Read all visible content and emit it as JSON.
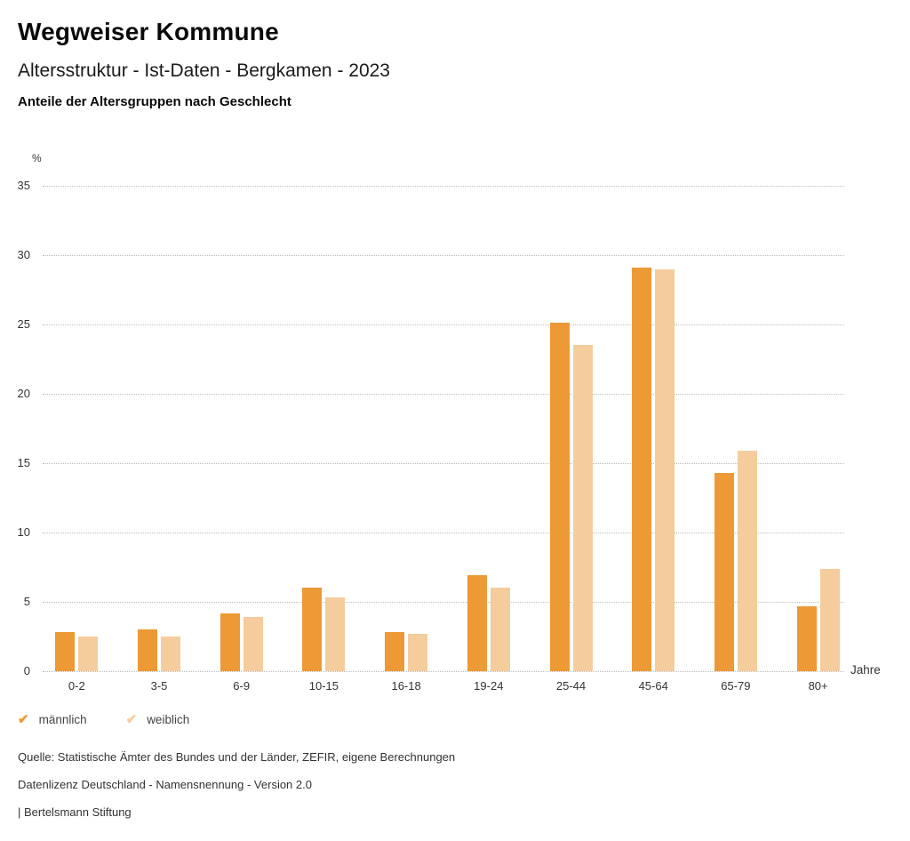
{
  "header": {
    "title": "Wegweiser Kommune",
    "subtitle": "Altersstruktur - Ist-Daten - Bergkamen - 2023",
    "subheading": "Anteile der Altersgruppen nach Geschlecht"
  },
  "chart_data": {
    "type": "bar",
    "title": "Anteile der Altersgruppen nach Geschlecht",
    "categories": [
      "0-2",
      "3-5",
      "6-9",
      "10-15",
      "16-18",
      "19-24",
      "25-44",
      "45-64",
      "65-79",
      "80+"
    ],
    "series": [
      {
        "name": "männlich",
        "color": "#ED9936",
        "values": [
          2.8,
          3.0,
          4.2,
          6.0,
          2.8,
          6.9,
          25.1,
          29.1,
          14.3,
          4.7
        ]
      },
      {
        "name": "weiblich",
        "color": "#F5CC9C",
        "values": [
          2.5,
          2.5,
          3.9,
          5.3,
          2.7,
          6.0,
          23.5,
          29.0,
          15.9,
          7.4
        ]
      }
    ],
    "ylabel": "%",
    "xlabel": "Jahre",
    "ylim": [
      0,
      35
    ],
    "ytick_step": 5,
    "yticks": [
      0,
      5,
      10,
      15,
      20,
      25,
      30,
      35
    ],
    "grid": "horizontal-dotted",
    "legend_position": "bottom-left"
  },
  "legend": {
    "items": [
      {
        "label": "männlich",
        "icon": "check-icon",
        "color": "#ED9936"
      },
      {
        "label": "weiblich",
        "icon": "check-icon",
        "color": "#F5CC9C"
      }
    ]
  },
  "footer": {
    "source": "Quelle: Statistische Ämter des Bundes und der Länder, ZEFIR, eigene Berechnungen",
    "license": "Datenlizenz Deutschland - Namensnennung - Version 2.0",
    "attribution": "| Bertelsmann Stiftung"
  }
}
